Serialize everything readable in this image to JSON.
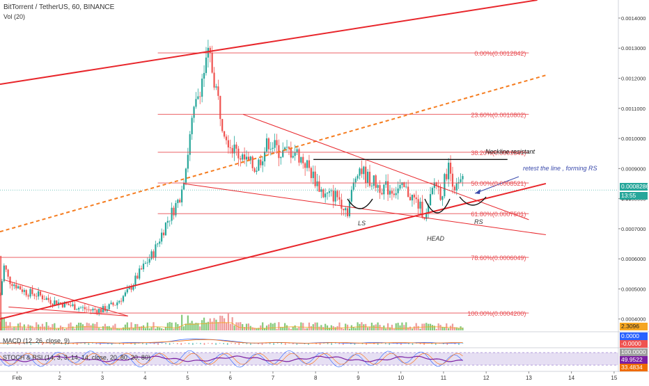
{
  "header": {
    "symbol_line": "BitTorrent / TetherUS, 60, BINANCE",
    "volume_label": "Vol (20)"
  },
  "price_axis": {
    "ticks": [
      "0.0014000",
      "0.0013000",
      "0.0012000",
      "0.0011000",
      "0.0010000",
      "0.0009000",
      "0.0008000",
      "0.0007000",
      "0.0006000",
      "0.0005000",
      "0.0004000"
    ],
    "tick_values": [
      0.0014,
      0.0013,
      0.0012,
      0.0011,
      0.001,
      0.0009,
      0.0008,
      0.0007,
      0.0006,
      0.0005,
      0.0004
    ],
    "current_price": "0.0008286",
    "countdown": "13:55",
    "hidden_tick": "0.00",
    "volume_badge": "2.3096"
  },
  "time_axis": {
    "ticks": [
      "Feb",
      "2",
      "3",
      "4",
      "5",
      "6",
      "7",
      "8",
      "9",
      "10",
      "11",
      "12",
      "13",
      "14",
      "15"
    ]
  },
  "macd": {
    "label": "MACD (12, 26, close, 9)",
    "values": [
      "0.0000",
      "-0.0000"
    ]
  },
  "stoch_rsi": {
    "label": "STOCH & RSI (14, 3, 3, 14, 14, close, 20, 80, 20, 80)",
    "values": [
      "100.0000",
      "49.9522",
      "33.4834"
    ]
  },
  "fib_levels": [
    {
      "label": "0.00%(0.0012842)",
      "value": 0.0012842
    },
    {
      "label": "23.60%(0.0010802)",
      "value": 0.0010802
    },
    {
      "label": "38.20%(0.0009541)",
      "value": 0.0009541
    },
    {
      "label": "50.00%(0.0008521)",
      "value": 0.0008521
    },
    {
      "label": "61.80%(0.0007501)",
      "value": 0.0007501
    },
    {
      "label": "78.60%(0.0006049)",
      "value": 0.0006049
    },
    {
      "label": "100.00%(0.0004200)",
      "value": 0.00042
    }
  ],
  "annotations": {
    "neckline": "Neckline resistant",
    "retest": "retest the line , forming RS",
    "ls": "LS",
    "head": "HEAD",
    "rs": "RS"
  },
  "colors": {
    "trend_red": "#e8262b",
    "fib_red": "#e84a4f",
    "dashed_orange": "#f57c1f",
    "candle_up": "#26a69a",
    "candle_down": "#ef5350",
    "volume_up": "#85c97a",
    "volume_down": "#ef9a9a",
    "macd_line": "#2962ff",
    "signal_line": "#ff6d00",
    "stoch_band": "#d1c4e9",
    "rsi_line": "#7b1fa2",
    "badge_price": "#26a69a",
    "badge_volume": "#f5a623",
    "badge_macd_blue": "#2962ff",
    "badge_macd_red": "#ef5350",
    "badge_stoch": "#7b1fa2",
    "badge_rsi": "#c13584",
    "badge_stoch2": "#ef6c00"
  },
  "chart_data": {
    "type": "candlestick",
    "title": "BitTorrent / TetherUS, 60, BINANCE",
    "x_unit": "day of February",
    "ylim": [
      0.00036,
      0.00146
    ],
    "xlim": [
      0.6,
      15.1
    ],
    "close_path": [
      {
        "x": 0.6,
        "y": 0.00048
      },
      {
        "x": 0.7,
        "y": 0.00058
      },
      {
        "x": 0.8,
        "y": 0.00053
      },
      {
        "x": 1.0,
        "y": 0.00051
      },
      {
        "x": 1.2,
        "y": 0.00049
      },
      {
        "x": 1.5,
        "y": 0.00048
      },
      {
        "x": 1.8,
        "y": 0.00046
      },
      {
        "x": 2.1,
        "y": 0.00045
      },
      {
        "x": 2.4,
        "y": 0.00044
      },
      {
        "x": 2.7,
        "y": 0.00043
      },
      {
        "x": 3.0,
        "y": 0.00043
      },
      {
        "x": 3.3,
        "y": 0.00045
      },
      {
        "x": 3.6,
        "y": 0.00049
      },
      {
        "x": 3.9,
        "y": 0.00056
      },
      {
        "x": 4.2,
        "y": 0.00062
      },
      {
        "x": 4.5,
        "y": 0.00072
      },
      {
        "x": 4.8,
        "y": 0.0008
      },
      {
        "x": 4.95,
        "y": 0.0009
      },
      {
        "x": 5.1,
        "y": 0.00105
      },
      {
        "x": 5.3,
        "y": 0.00118
      },
      {
        "x": 5.5,
        "y": 0.00128
      },
      {
        "x": 5.65,
        "y": 0.00118
      },
      {
        "x": 5.8,
        "y": 0.00106
      },
      {
        "x": 6.0,
        "y": 0.00098
      },
      {
        "x": 6.3,
        "y": 0.00093
      },
      {
        "x": 6.6,
        "y": 0.0009
      },
      {
        "x": 6.9,
        "y": 0.00099
      },
      {
        "x": 7.2,
        "y": 0.00095
      },
      {
        "x": 7.5,
        "y": 0.00096
      },
      {
        "x": 7.8,
        "y": 0.00091
      },
      {
        "x": 8.0,
        "y": 0.00086
      },
      {
        "x": 8.2,
        "y": 0.00081
      },
      {
        "x": 8.5,
        "y": 0.00081
      },
      {
        "x": 8.75,
        "y": 0.00076
      },
      {
        "x": 9.0,
        "y": 0.00091
      },
      {
        "x": 9.2,
        "y": 0.00087
      },
      {
        "x": 9.5,
        "y": 0.00084
      },
      {
        "x": 9.8,
        "y": 0.00083
      },
      {
        "x": 10.1,
        "y": 0.00083
      },
      {
        "x": 10.35,
        "y": 0.00079
      },
      {
        "x": 10.6,
        "y": 0.00074
      },
      {
        "x": 10.8,
        "y": 0.00086
      },
      {
        "x": 10.95,
        "y": 0.00081
      },
      {
        "x": 11.1,
        "y": 0.00091
      },
      {
        "x": 11.3,
        "y": 0.00083
      },
      {
        "x": 11.45,
        "y": 0.00086
      }
    ],
    "trendlines": [
      {
        "name": "channel-upper",
        "style": "solid",
        "x1": 0.6,
        "y1": 0.00118,
        "x2": 13.2,
        "y2": 0.00146
      },
      {
        "name": "channel-lower",
        "style": "solid",
        "x1": 0.6,
        "y1": 0.0004,
        "x2": 13.4,
        "y2": 0.00085
      },
      {
        "name": "channel-mid",
        "style": "dashed",
        "x1": 0.6,
        "y1": 0.00069,
        "x2": 13.4,
        "y2": 0.00121
      },
      {
        "name": "wedge-top",
        "style": "solid",
        "x1": 6.3,
        "y1": 0.00108,
        "x2": 13.0,
        "y2": 0.00073
      },
      {
        "name": "wedge-bottom",
        "style": "solid",
        "x1": 4.9,
        "y1": 0.00085,
        "x2": 13.4,
        "y2": 0.00068
      },
      {
        "name": "early-down",
        "style": "solid",
        "x1": 0.7,
        "y1": 0.00053,
        "x2": 3.6,
        "y2": 0.00041
      },
      {
        "name": "early-up",
        "style": "solid",
        "x1": 0.8,
        "y1": 0.00044,
        "x2": 3.6,
        "y2": 0.00041
      }
    ],
    "neckline": {
      "x1": 7.95,
      "y1": 0.00093,
      "x2": 12.5,
      "y2": 0.00093
    }
  }
}
